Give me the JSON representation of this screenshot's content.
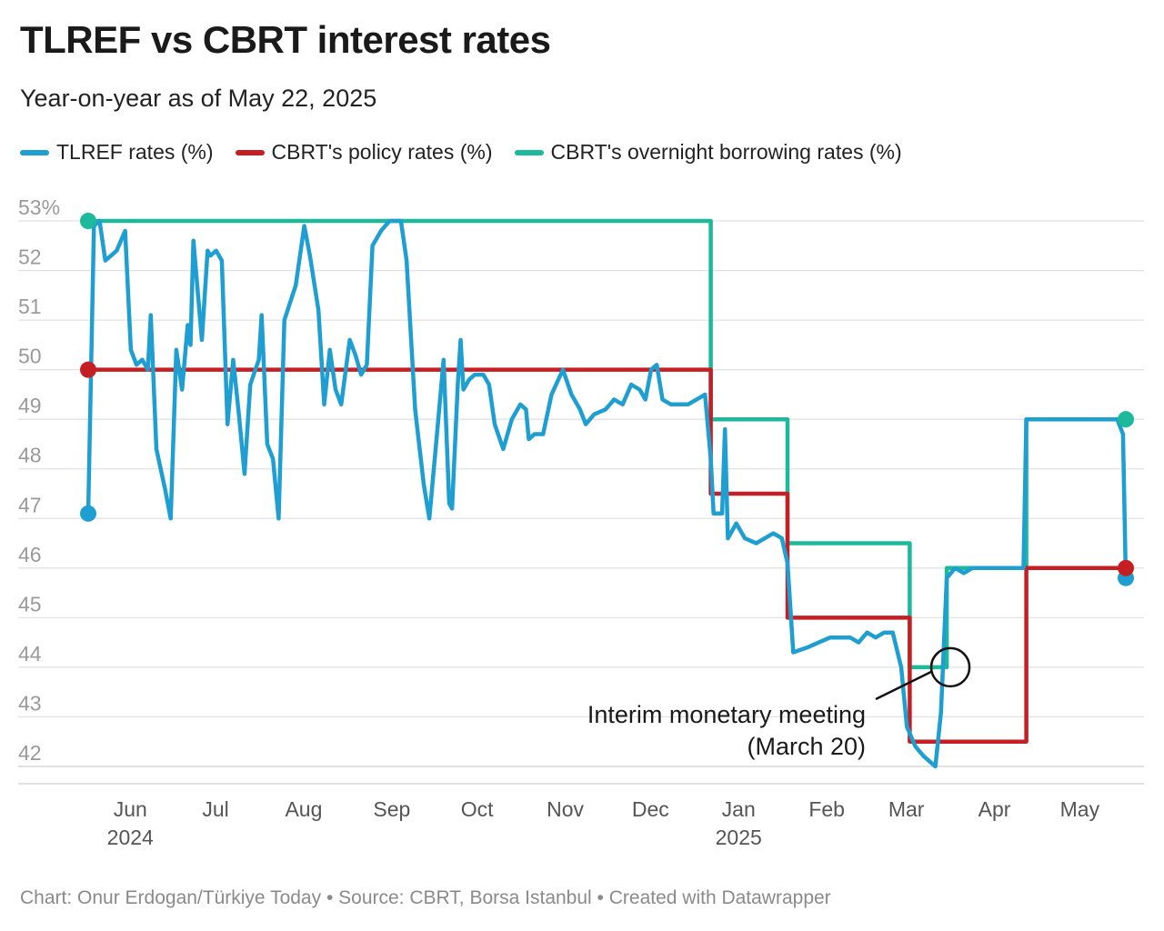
{
  "header": {
    "title": "TLREF vs CBRT interest rates",
    "subtitle": "Year-on-year as of May 22, 2025"
  },
  "legend": [
    {
      "label": "TLREF rates (%)",
      "color": "#1f9fd1"
    },
    {
      "label": "CBRT's policy rates (%)",
      "color": "#c51f23"
    },
    {
      "label": "CBRT's overnight borrowing rates (%)",
      "color": "#1cb99a"
    }
  ],
  "footer": "Chart: Onur Erdogan/Türkiye Today • Source: CBRT, Borsa Istanbul • Created with Datawrapper",
  "chart_data": {
    "type": "line",
    "title": "TLREF vs CBRT interest rates",
    "subtitle": "Year-on-year as of May 22, 2025",
    "xlabel": "",
    "ylabel": "",
    "y_unit_suffix": "%",
    "ylim": [
      41.7,
      53.3
    ],
    "y_ticks": [
      53,
      52,
      51,
      50,
      49,
      48,
      47,
      46,
      45,
      44,
      43,
      42
    ],
    "y_tick_labels": [
      "53%",
      "52",
      "51",
      "50",
      "49",
      "48",
      "47",
      "46",
      "45",
      "44",
      "43",
      "42"
    ],
    "x_range": [
      "2024-05-22",
      "2025-05-22"
    ],
    "x_ticks": [
      {
        "date": "2024-06-01",
        "label": "Jun",
        "sublabel": "2024"
      },
      {
        "date": "2024-07-01",
        "label": "Jul"
      },
      {
        "date": "2024-08-01",
        "label": "Aug"
      },
      {
        "date": "2024-09-01",
        "label": "Sep"
      },
      {
        "date": "2024-10-01",
        "label": "Oct"
      },
      {
        "date": "2024-11-01",
        "label": "Nov"
      },
      {
        "date": "2024-12-01",
        "label": "Dec"
      },
      {
        "date": "2025-01-01",
        "label": "Jan",
        "sublabel": "2025"
      },
      {
        "date": "2025-02-01",
        "label": "Feb"
      },
      {
        "date": "2025-03-01",
        "label": "Mar"
      },
      {
        "date": "2025-04-01",
        "label": "Apr"
      },
      {
        "date": "2025-05-01",
        "label": "May"
      }
    ],
    "series": [
      {
        "name": "TLREF rates (%)",
        "color": "#1f9fd1",
        "points": [
          [
            "2024-05-22",
            47.1
          ],
          [
            "2024-05-24",
            52.9
          ],
          [
            "2024-05-26",
            53.0
          ],
          [
            "2024-05-28",
            52.2
          ],
          [
            "2024-06-01",
            52.4
          ],
          [
            "2024-06-04",
            52.8
          ],
          [
            "2024-06-06",
            50.4
          ],
          [
            "2024-06-08",
            50.1
          ],
          [
            "2024-06-10",
            50.2
          ],
          [
            "2024-06-12",
            50.0
          ],
          [
            "2024-06-13",
            51.1
          ],
          [
            "2024-06-15",
            48.4
          ],
          [
            "2024-06-18",
            47.6
          ],
          [
            "2024-06-20",
            47.0
          ],
          [
            "2024-06-22",
            50.4
          ],
          [
            "2024-06-24",
            49.6
          ],
          [
            "2024-06-26",
            50.9
          ],
          [
            "2024-06-27",
            50.5
          ],
          [
            "2024-06-28",
            52.6
          ],
          [
            "2024-07-01",
            50.6
          ],
          [
            "2024-07-03",
            52.4
          ],
          [
            "2024-07-04",
            52.3
          ],
          [
            "2024-07-06",
            52.4
          ],
          [
            "2024-07-08",
            52.2
          ],
          [
            "2024-07-10",
            48.9
          ],
          [
            "2024-07-12",
            50.2
          ],
          [
            "2024-07-14",
            49.1
          ],
          [
            "2024-07-16",
            47.9
          ],
          [
            "2024-07-18",
            49.7
          ],
          [
            "2024-07-21",
            50.2
          ],
          [
            "2024-07-22",
            51.1
          ],
          [
            "2024-07-24",
            48.5
          ],
          [
            "2024-07-26",
            48.2
          ],
          [
            "2024-07-28",
            47.0
          ],
          [
            "2024-07-30",
            51.0
          ],
          [
            "2024-08-03",
            51.7
          ],
          [
            "2024-08-06",
            52.9
          ],
          [
            "2024-08-08",
            52.3
          ],
          [
            "2024-08-11",
            51.2
          ],
          [
            "2024-08-13",
            49.3
          ],
          [
            "2024-08-15",
            50.4
          ],
          [
            "2024-08-17",
            49.6
          ],
          [
            "2024-08-19",
            49.3
          ],
          [
            "2024-08-22",
            50.6
          ],
          [
            "2024-08-24",
            50.3
          ],
          [
            "2024-08-26",
            49.9
          ],
          [
            "2024-08-28",
            50.1
          ],
          [
            "2024-08-30",
            52.5
          ],
          [
            "2024-09-02",
            52.8
          ],
          [
            "2024-09-05",
            53.0
          ],
          [
            "2024-09-09",
            53.0
          ],
          [
            "2024-09-11",
            52.2
          ],
          [
            "2024-09-14",
            49.2
          ],
          [
            "2024-09-17",
            47.7
          ],
          [
            "2024-09-19",
            47.0
          ],
          [
            "2024-09-22",
            48.9
          ],
          [
            "2024-09-24",
            50.2
          ],
          [
            "2024-09-26",
            47.3
          ],
          [
            "2024-09-27",
            47.2
          ],
          [
            "2024-09-29",
            49.7
          ],
          [
            "2024-09-30",
            50.6
          ],
          [
            "2024-10-01",
            49.6
          ],
          [
            "2024-10-03",
            49.8
          ],
          [
            "2024-10-05",
            49.9
          ],
          [
            "2024-10-08",
            49.9
          ],
          [
            "2024-10-10",
            49.7
          ],
          [
            "2024-10-12",
            48.9
          ],
          [
            "2024-10-15",
            48.4
          ],
          [
            "2024-10-18",
            49.0
          ],
          [
            "2024-10-21",
            49.3
          ],
          [
            "2024-10-23",
            49.2
          ],
          [
            "2024-10-24",
            48.6
          ],
          [
            "2024-10-26",
            48.7
          ],
          [
            "2024-10-29",
            48.7
          ],
          [
            "2024-11-01",
            49.5
          ],
          [
            "2024-11-05",
            50.0
          ],
          [
            "2024-11-08",
            49.5
          ],
          [
            "2024-11-11",
            49.2
          ],
          [
            "2024-11-13",
            48.9
          ],
          [
            "2024-11-16",
            49.1
          ],
          [
            "2024-11-20",
            49.2
          ],
          [
            "2024-11-23",
            49.4
          ],
          [
            "2024-11-26",
            49.3
          ],
          [
            "2024-11-29",
            49.7
          ],
          [
            "2024-12-02",
            49.6
          ],
          [
            "2024-12-04",
            49.4
          ],
          [
            "2024-12-06",
            50.0
          ],
          [
            "2024-12-08",
            50.1
          ],
          [
            "2024-12-10",
            49.4
          ],
          [
            "2024-12-13",
            49.3
          ],
          [
            "2024-12-16",
            49.3
          ],
          [
            "2024-12-19",
            49.3
          ],
          [
            "2024-12-22",
            49.4
          ],
          [
            "2024-12-25",
            49.5
          ],
          [
            "2024-12-27",
            48.2
          ],
          [
            "2024-12-28",
            47.1
          ],
          [
            "2024-12-31",
            47.1
          ],
          [
            "2025-01-01",
            48.8
          ],
          [
            "2025-01-02",
            46.6
          ],
          [
            "2025-01-05",
            46.9
          ],
          [
            "2025-01-08",
            46.6
          ],
          [
            "2025-01-12",
            46.5
          ],
          [
            "2025-01-15",
            46.6
          ],
          [
            "2025-01-18",
            46.7
          ],
          [
            "2025-01-21",
            46.6
          ],
          [
            "2025-01-23",
            46.1
          ],
          [
            "2025-01-25",
            44.3
          ],
          [
            "2025-01-30",
            44.4
          ],
          [
            "2025-02-03",
            44.5
          ],
          [
            "2025-02-07",
            44.6
          ],
          [
            "2025-02-11",
            44.6
          ],
          [
            "2025-02-14",
            44.6
          ],
          [
            "2025-02-17",
            44.5
          ],
          [
            "2025-02-20",
            44.7
          ],
          [
            "2025-02-23",
            44.6
          ],
          [
            "2025-02-26",
            44.7
          ],
          [
            "2025-03-01",
            44.7
          ],
          [
            "2025-03-04",
            44.0
          ],
          [
            "2025-03-06",
            42.8
          ],
          [
            "2025-03-09",
            42.4
          ],
          [
            "2025-03-12",
            42.2
          ],
          [
            "2025-03-16",
            42.0
          ],
          [
            "2025-03-18",
            43.1
          ],
          [
            "2025-03-20",
            45.8
          ],
          [
            "2025-03-23",
            46.0
          ],
          [
            "2025-03-26",
            45.9
          ],
          [
            "2025-03-29",
            46.0
          ],
          [
            "2025-04-04",
            46.0
          ],
          [
            "2025-04-10",
            46.0
          ],
          [
            "2025-04-16",
            46.0
          ],
          [
            "2025-04-17",
            49.0
          ],
          [
            "2025-04-25",
            49.0
          ],
          [
            "2025-05-01",
            49.0
          ],
          [
            "2025-05-10",
            49.0
          ],
          [
            "2025-05-19",
            49.0
          ],
          [
            "2025-05-21",
            48.7
          ],
          [
            "2025-05-22",
            45.8
          ]
        ]
      },
      {
        "name": "CBRT's policy rates (%)",
        "color": "#c51f23",
        "points": [
          [
            "2024-05-22",
            50.0
          ],
          [
            "2024-12-27",
            50.0
          ],
          [
            "2024-12-27",
            47.5
          ],
          [
            "2025-01-23",
            47.5
          ],
          [
            "2025-01-23",
            45.0
          ],
          [
            "2025-03-07",
            45.0
          ],
          [
            "2025-03-07",
            42.5
          ],
          [
            "2025-04-17",
            42.5
          ],
          [
            "2025-04-17",
            46.0
          ],
          [
            "2025-05-22",
            46.0
          ]
        ]
      },
      {
        "name": "CBRT's overnight borrowing rates (%)",
        "color": "#1cb99a",
        "points": [
          [
            "2024-05-22",
            53.0
          ],
          [
            "2024-12-27",
            53.0
          ],
          [
            "2024-12-27",
            49.0
          ],
          [
            "2025-01-23",
            49.0
          ],
          [
            "2025-01-23",
            46.5
          ],
          [
            "2025-03-07",
            46.5
          ],
          [
            "2025-03-07",
            44.0
          ],
          [
            "2025-03-20",
            44.0
          ],
          [
            "2025-03-20",
            46.0
          ],
          [
            "2025-04-17",
            46.0
          ],
          [
            "2025-04-17",
            49.0
          ],
          [
            "2025-05-22",
            49.0
          ]
        ]
      }
    ],
    "annotations": [
      {
        "lines": [
          "Interim monetary meeting",
          "(March 20)"
        ],
        "date": "2025-03-20",
        "value": 44.0
      }
    ]
  }
}
